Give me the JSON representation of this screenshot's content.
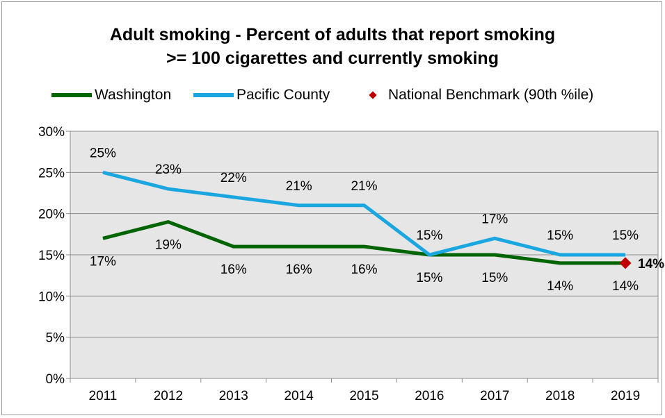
{
  "chart_data": {
    "type": "line",
    "title": "Adult smoking - Percent of adults that report smoking",
    "subtitle": ">= 100 cigarettes and currently smoking",
    "categories": [
      "2011",
      "2012",
      "2013",
      "2014",
      "2015",
      "2016",
      "2017",
      "2018",
      "2019"
    ],
    "series": [
      {
        "name": "Washington",
        "color": "#006400",
        "values": [
          17,
          19,
          16,
          16,
          16,
          15,
          15,
          14,
          14
        ]
      },
      {
        "name": "Pacific County",
        "color": "#1aa7e0",
        "values": [
          25,
          23,
          22,
          21,
          21,
          15,
          17,
          15,
          15
        ]
      }
    ],
    "benchmark": {
      "name": "National Benchmark (90th %ile)",
      "color": "#c00000",
      "category": "2019",
      "value": 14,
      "label": "14%"
    },
    "y_ticks": [
      "0%",
      "5%",
      "10%",
      "15%",
      "20%",
      "25%",
      "30%"
    ],
    "ylim": [
      0,
      30
    ],
    "grid": true,
    "plot_background": "#e6e6e6",
    "legend_position": "top",
    "data_labels": {
      "Washington": [
        "17%",
        "19%",
        "16%",
        "16%",
        "16%",
        "15%",
        "15%",
        "14%",
        "14%"
      ],
      "Pacific County": [
        "25%",
        "23%",
        "22%",
        "21%",
        "21%",
        "15%",
        "17%",
        "15%",
        "15%"
      ]
    }
  }
}
